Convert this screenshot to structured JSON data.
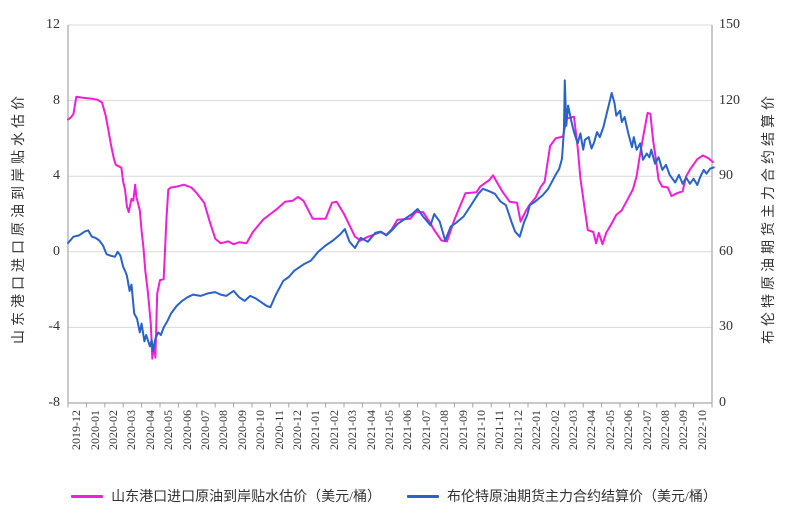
{
  "chart": {
    "left_axis": {
      "title": "山东港口进口原油到岸贴水估价",
      "ticks": [
        12,
        8,
        4,
        0,
        -4,
        -8
      ],
      "min": -8,
      "max": 12
    },
    "right_axis": {
      "title": "布伦特原油期货主力合约结算价",
      "ticks": [
        150,
        120,
        90,
        60,
        30,
        0
      ],
      "min": 0,
      "max": 150
    },
    "x_axis": {
      "labels": [
        "2019-12",
        "2020-01",
        "2020-02",
        "2020-03",
        "2020-04",
        "2020-05",
        "2020-06",
        "2020-07",
        "2020-08",
        "2020-09",
        "2020-10",
        "2020-11",
        "2020-12",
        "2021-01",
        "2021-02",
        "2021-03",
        "2021-04",
        "2021-05",
        "2021-06",
        "2021-07",
        "2021-08",
        "2021-09",
        "2021-10",
        "2021-11",
        "2021-12",
        "2022-01",
        "2022-02",
        "2022-03",
        "2022-04",
        "2022-05",
        "2022-06",
        "2022-07",
        "2022-08",
        "2022-09",
        "2022-10"
      ]
    },
    "legend": [
      {
        "label": "山东港口进口原油到岸贴水估价（美元/桶）",
        "color": "#EF1ED8"
      },
      {
        "label": "布伦特原油期货主力合约结算价（美元/桶）",
        "color": "#2A63C8"
      }
    ],
    "colors": {
      "grid": "#D9D9D9",
      "axis": "#A6A6A6",
      "text": "#333333"
    }
  },
  "chart_data": {
    "type": "line",
    "title": "",
    "x_unit": "months since 2019-12 (0 = 2019-12, 35 = 2022-11)",
    "x_range": [
      0,
      35
    ],
    "left_ylim": [
      -8,
      12
    ],
    "right_ylim": [
      0,
      150
    ],
    "grid": "horizontal only",
    "legend_position": "bottom",
    "series": [
      {
        "name": "山东港口进口原油到岸贴水估价（美元/桶）",
        "axis": "left",
        "color": "#EF1ED8",
        "points": [
          [
            0,
            7.0
          ],
          [
            0.15,
            7.1
          ],
          [
            0.3,
            7.3
          ],
          [
            0.45,
            8.2
          ],
          [
            0.8,
            8.15
          ],
          [
            1.3,
            8.1
          ],
          [
            1.6,
            8.05
          ],
          [
            1.85,
            7.9
          ],
          [
            2.05,
            7.2
          ],
          [
            2.2,
            6.4
          ],
          [
            2.35,
            5.6
          ],
          [
            2.5,
            4.9
          ],
          [
            2.6,
            4.6
          ],
          [
            2.9,
            4.45
          ],
          [
            3.0,
            3.7
          ],
          [
            3.1,
            3.3
          ],
          [
            3.2,
            2.4
          ],
          [
            3.3,
            2.1
          ],
          [
            3.45,
            2.8
          ],
          [
            3.55,
            2.7
          ],
          [
            3.65,
            3.55
          ],
          [
            3.72,
            2.9
          ],
          [
            3.8,
            2.6
          ],
          [
            3.9,
            2.2
          ],
          [
            4.0,
            1.1
          ],
          [
            4.1,
            0.25
          ],
          [
            4.2,
            -1.0
          ],
          [
            4.35,
            -2.2
          ],
          [
            4.5,
            -3.8
          ],
          [
            4.58,
            -5.65
          ],
          [
            4.68,
            -4.9
          ],
          [
            4.75,
            -5.6
          ],
          [
            4.85,
            -2.2
          ],
          [
            5.0,
            -1.5
          ],
          [
            5.2,
            -1.45
          ],
          [
            5.35,
            1.7
          ],
          [
            5.45,
            3.3
          ],
          [
            5.6,
            3.4
          ],
          [
            5.9,
            3.45
          ],
          [
            6.3,
            3.55
          ],
          [
            6.7,
            3.4
          ],
          [
            7.0,
            3.1
          ],
          [
            7.4,
            2.6
          ],
          [
            7.7,
            1.6
          ],
          [
            8.0,
            0.7
          ],
          [
            8.3,
            0.45
          ],
          [
            8.7,
            0.55
          ],
          [
            9.0,
            0.4
          ],
          [
            9.3,
            0.5
          ],
          [
            9.7,
            0.45
          ],
          [
            10.05,
            1.05
          ],
          [
            10.6,
            1.7
          ],
          [
            11.0,
            2.0
          ],
          [
            11.4,
            2.3
          ],
          [
            11.8,
            2.65
          ],
          [
            12.2,
            2.7
          ],
          [
            12.5,
            2.9
          ],
          [
            12.8,
            2.7
          ],
          [
            13.3,
            1.75
          ],
          [
            14.0,
            1.75
          ],
          [
            14.35,
            2.6
          ],
          [
            14.6,
            2.65
          ],
          [
            15.0,
            2.0
          ],
          [
            15.2,
            1.6
          ],
          [
            15.6,
            0.8
          ],
          [
            15.9,
            0.6
          ],
          [
            16.2,
            0.75
          ],
          [
            16.6,
            0.9
          ],
          [
            17.0,
            1.05
          ],
          [
            17.3,
            0.9
          ],
          [
            17.6,
            1.2
          ],
          [
            17.9,
            1.7
          ],
          [
            18.6,
            1.75
          ],
          [
            18.9,
            2.1
          ],
          [
            19.3,
            2.1
          ],
          [
            19.7,
            1.5
          ],
          [
            19.9,
            1.15
          ],
          [
            20.3,
            0.6
          ],
          [
            20.6,
            0.55
          ],
          [
            21.0,
            1.7
          ],
          [
            21.6,
            3.1
          ],
          [
            22.2,
            3.15
          ],
          [
            22.4,
            3.45
          ],
          [
            22.9,
            3.8
          ],
          [
            23.1,
            4.05
          ],
          [
            23.3,
            3.7
          ],
          [
            23.6,
            3.2
          ],
          [
            24.0,
            2.65
          ],
          [
            24.4,
            2.6
          ],
          [
            24.6,
            1.6
          ],
          [
            24.9,
            2.2
          ],
          [
            25.1,
            2.5
          ],
          [
            25.4,
            2.85
          ],
          [
            25.7,
            3.45
          ],
          [
            25.9,
            3.7
          ],
          [
            26.2,
            5.6
          ],
          [
            26.5,
            6.0
          ],
          [
            26.9,
            6.1
          ],
          [
            27.1,
            7.05
          ],
          [
            27.5,
            7.15
          ],
          [
            27.7,
            5.5
          ],
          [
            27.85,
            3.9
          ],
          [
            28.05,
            2.5
          ],
          [
            28.25,
            1.15
          ],
          [
            28.55,
            1.05
          ],
          [
            28.7,
            0.45
          ],
          [
            28.85,
            1.0
          ],
          [
            29.05,
            0.4
          ],
          [
            29.25,
            1.0
          ],
          [
            29.55,
            1.5
          ],
          [
            29.8,
            1.95
          ],
          [
            30.1,
            2.2
          ],
          [
            30.4,
            2.75
          ],
          [
            30.7,
            3.3
          ],
          [
            30.9,
            4.0
          ],
          [
            31.1,
            5.2
          ],
          [
            31.3,
            6.3
          ],
          [
            31.5,
            7.35
          ],
          [
            31.65,
            7.3
          ],
          [
            31.8,
            5.9
          ],
          [
            31.95,
            4.9
          ],
          [
            32.1,
            3.8
          ],
          [
            32.3,
            3.45
          ],
          [
            32.6,
            3.4
          ],
          [
            32.8,
            2.95
          ],
          [
            33.1,
            3.1
          ],
          [
            33.4,
            3.2
          ],
          [
            33.6,
            4.0
          ],
          [
            33.8,
            4.35
          ],
          [
            34.2,
            4.9
          ],
          [
            34.5,
            5.1
          ],
          [
            34.8,
            4.95
          ],
          [
            35.05,
            4.75
          ]
        ]
      },
      {
        "name": "布伦特原油期货主力合约结算价（美元/桶）",
        "axis": "right",
        "color": "#2A63C8",
        "points": [
          [
            0,
            63.5
          ],
          [
            0.3,
            66
          ],
          [
            0.6,
            66.5
          ],
          [
            0.9,
            68
          ],
          [
            1.1,
            68.5
          ],
          [
            1.3,
            66
          ],
          [
            1.5,
            65.5
          ],
          [
            1.7,
            64.5
          ],
          [
            1.9,
            62.5
          ],
          [
            2.1,
            59
          ],
          [
            2.3,
            58.5
          ],
          [
            2.55,
            58
          ],
          [
            2.7,
            60
          ],
          [
            2.85,
            58.5
          ],
          [
            3.0,
            54
          ],
          [
            3.1,
            52.5
          ],
          [
            3.2,
            50.5
          ],
          [
            3.35,
            44.5
          ],
          [
            3.45,
            47
          ],
          [
            3.6,
            35.5
          ],
          [
            3.75,
            33.5
          ],
          [
            3.9,
            28
          ],
          [
            4.0,
            31.5
          ],
          [
            4.15,
            24.5
          ],
          [
            4.25,
            27
          ],
          [
            4.45,
            22.5
          ],
          [
            4.55,
            25
          ],
          [
            4.62,
            20.5
          ],
          [
            4.75,
            25.5
          ],
          [
            4.9,
            28
          ],
          [
            5.05,
            27
          ],
          [
            5.2,
            30
          ],
          [
            5.4,
            32.5
          ],
          [
            5.6,
            35.5
          ],
          [
            5.9,
            38.5
          ],
          [
            6.2,
            40.5
          ],
          [
            6.5,
            42
          ],
          [
            6.8,
            43
          ],
          [
            7.2,
            42.5
          ],
          [
            7.6,
            43.5
          ],
          [
            8.0,
            44
          ],
          [
            8.3,
            43
          ],
          [
            8.6,
            42.5
          ],
          [
            9.0,
            44.5
          ],
          [
            9.3,
            42
          ],
          [
            9.6,
            40.5
          ],
          [
            9.9,
            42.5
          ],
          [
            10.2,
            41.5
          ],
          [
            10.5,
            40
          ],
          [
            10.8,
            38.5
          ],
          [
            11.0,
            38
          ],
          [
            11.3,
            43
          ],
          [
            11.7,
            48.5
          ],
          [
            12.0,
            50
          ],
          [
            12.3,
            52.5
          ],
          [
            12.8,
            55
          ],
          [
            13.2,
            56.5
          ],
          [
            13.6,
            60
          ],
          [
            14.0,
            62.5
          ],
          [
            14.4,
            64.5
          ],
          [
            14.8,
            67
          ],
          [
            15.05,
            69
          ],
          [
            15.3,
            64
          ],
          [
            15.6,
            61.5
          ],
          [
            15.9,
            65.5
          ],
          [
            16.3,
            64
          ],
          [
            16.7,
            67.5
          ],
          [
            17.0,
            68
          ],
          [
            17.3,
            66.5
          ],
          [
            17.6,
            68.5
          ],
          [
            17.9,
            71
          ],
          [
            18.3,
            73
          ],
          [
            18.7,
            75
          ],
          [
            19.0,
            77
          ],
          [
            19.3,
            74
          ],
          [
            19.7,
            70.5
          ],
          [
            19.9,
            75
          ],
          [
            20.2,
            72
          ],
          [
            20.5,
            64.5
          ],
          [
            20.8,
            70
          ],
          [
            21.1,
            71.5
          ],
          [
            21.5,
            74
          ],
          [
            21.9,
            78.5
          ],
          [
            22.3,
            83
          ],
          [
            22.55,
            85
          ],
          [
            22.9,
            84
          ],
          [
            23.2,
            83
          ],
          [
            23.5,
            80
          ],
          [
            23.8,
            78.5
          ],
          [
            24.1,
            72
          ],
          [
            24.3,
            68
          ],
          [
            24.55,
            66
          ],
          [
            24.8,
            72
          ],
          [
            24.95,
            74.5
          ],
          [
            25.1,
            78.5
          ],
          [
            25.4,
            80
          ],
          [
            25.8,
            82.5
          ],
          [
            26.1,
            85
          ],
          [
            26.5,
            90.5
          ],
          [
            26.7,
            93
          ],
          [
            26.85,
            97
          ],
          [
            26.95,
            108
          ],
          [
            27.0,
            128
          ],
          [
            27.08,
            110
          ],
          [
            27.18,
            118
          ],
          [
            27.35,
            112
          ],
          [
            27.5,
            107.5
          ],
          [
            27.7,
            103
          ],
          [
            27.85,
            107
          ],
          [
            28.0,
            100.5
          ],
          [
            28.1,
            104.5
          ],
          [
            28.3,
            105.5
          ],
          [
            28.45,
            101
          ],
          [
            28.6,
            103.5
          ],
          [
            28.75,
            107.5
          ],
          [
            28.9,
            105.5
          ],
          [
            29.1,
            109.5
          ],
          [
            29.3,
            115.5
          ],
          [
            29.45,
            120
          ],
          [
            29.55,
            123
          ],
          [
            29.7,
            119
          ],
          [
            29.8,
            114
          ],
          [
            30.0,
            116
          ],
          [
            30.1,
            111.5
          ],
          [
            30.25,
            113.5
          ],
          [
            30.45,
            107
          ],
          [
            30.65,
            101.5
          ],
          [
            30.75,
            105.5
          ],
          [
            30.9,
            100.5
          ],
          [
            31.1,
            103
          ],
          [
            31.25,
            96.5
          ],
          [
            31.45,
            99
          ],
          [
            31.6,
            97.5
          ],
          [
            31.7,
            100.5
          ],
          [
            31.9,
            95
          ],
          [
            32.1,
            97.5
          ],
          [
            32.3,
            92.5
          ],
          [
            32.5,
            94.5
          ],
          [
            32.7,
            90.5
          ],
          [
            33.0,
            87.5
          ],
          [
            33.2,
            90.5
          ],
          [
            33.4,
            87
          ],
          [
            33.6,
            89.5
          ],
          [
            33.8,
            87
          ],
          [
            34.0,
            89
          ],
          [
            34.2,
            86.5
          ],
          [
            34.35,
            89.5
          ],
          [
            34.55,
            92.5
          ],
          [
            34.7,
            91
          ],
          [
            34.9,
            93
          ],
          [
            35.1,
            93.5
          ]
        ]
      }
    ]
  }
}
